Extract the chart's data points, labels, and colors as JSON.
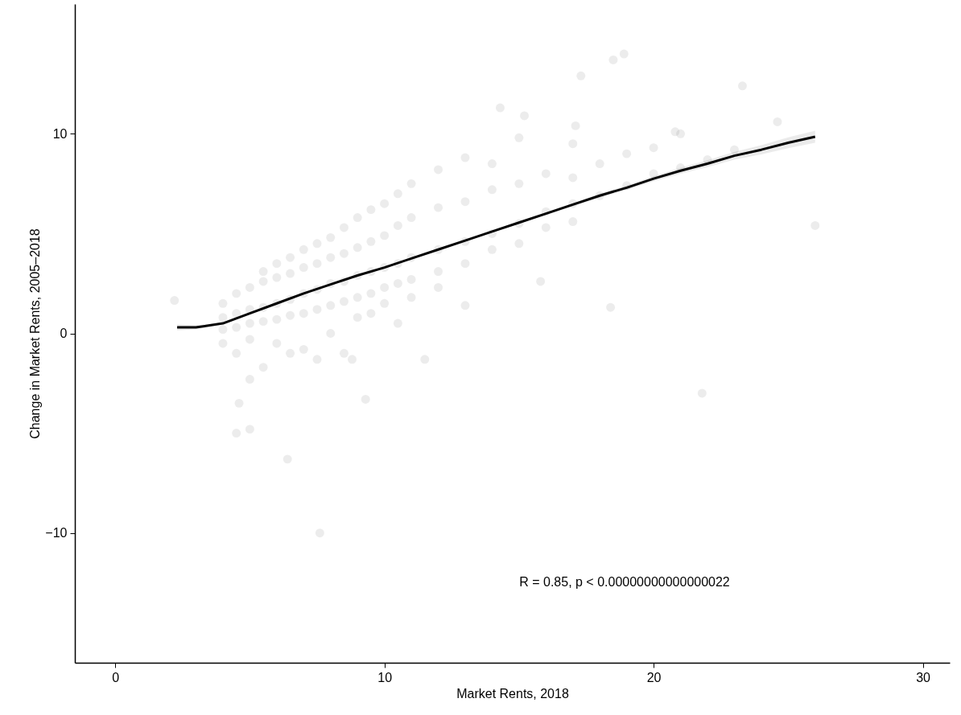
{
  "chart_data": {
    "type": "scatter",
    "xlabel": "Market Rents, 2018",
    "ylabel": "Change in Market Rents, 2005–2018",
    "xlim": [
      -1.5,
      31
    ],
    "ylim": [
      -16.5,
      16.5
    ],
    "xticks": [
      0,
      10,
      20,
      30
    ],
    "yticks": [
      {
        "value": -10,
        "label": "−10"
      },
      0,
      10
    ],
    "grid": false,
    "annotations": [
      "R = 0.85, p < 0.00000000000000022"
    ],
    "series": [
      {
        "color": "#808080",
        "marker": "circle",
        "x": [
          4,
          4,
          4,
          4,
          4.5,
          4.5,
          4.5,
          4.5,
          5,
          5,
          5,
          5,
          5,
          5.5,
          5.5,
          5.5,
          5.5,
          5.5,
          6,
          6,
          6,
          6,
          6,
          6.5,
          6.5,
          6.5,
          6.5,
          6.5,
          7,
          7,
          7,
          7,
          7,
          7.5,
          7.5,
          7.5,
          7.5,
          7.5,
          8,
          8,
          8,
          8,
          8,
          8.5,
          8.5,
          8.5,
          8.5,
          8.5,
          9,
          9,
          9,
          9,
          9,
          9.5,
          9.5,
          9.5,
          9.5,
          9.5,
          10,
          10,
          10,
          10,
          10,
          10.5,
          10.5,
          10.5,
          10.5,
          10.5,
          11,
          11,
          11,
          11,
          11,
          12,
          12,
          12,
          12,
          12,
          13,
          13,
          13,
          13,
          13,
          14,
          14,
          14,
          14,
          15,
          15,
          15,
          15,
          16,
          16,
          16,
          17,
          17,
          17,
          17,
          18,
          18,
          19,
          19,
          20,
          20,
          21,
          21,
          22,
          23,
          7.6,
          6.4,
          21.8,
          18.4,
          26,
          18.9,
          18.5,
          17.3,
          23.3,
          15.2,
          2.2,
          4.5,
          5,
          4.6,
          11.5,
          8.8,
          9.3,
          15.8,
          20.8,
          24.6,
          17.1,
          14.3
        ],
        "values": [
          0.8,
          1.5,
          0.2,
          -0.5,
          1.0,
          2.0,
          0.3,
          -1.0,
          1.2,
          2.3,
          0.5,
          -0.3,
          -2.3,
          1.3,
          2.6,
          0.6,
          3.1,
          -1.7,
          1.5,
          2.8,
          0.7,
          3.5,
          -0.5,
          1.7,
          3.0,
          0.9,
          3.8,
          -1.0,
          2.0,
          3.3,
          1.0,
          4.2,
          -0.8,
          2.2,
          3.5,
          1.2,
          4.5,
          -1.3,
          2.5,
          3.8,
          1.4,
          4.8,
          0.0,
          2.6,
          4.0,
          1.6,
          5.3,
          -1.0,
          2.9,
          4.3,
          1.8,
          5.8,
          0.8,
          3.1,
          4.6,
          2.0,
          6.2,
          1.0,
          3.3,
          4.9,
          2.3,
          6.5,
          1.5,
          3.5,
          5.4,
          2.5,
          7.0,
          0.5,
          3.8,
          5.8,
          2.7,
          7.5,
          1.8,
          4.2,
          6.3,
          3.1,
          8.2,
          2.3,
          4.6,
          6.6,
          3.5,
          8.8,
          1.4,
          5.0,
          7.2,
          4.2,
          8.5,
          5.5,
          7.5,
          4.5,
          9.8,
          6.1,
          8.0,
          5.3,
          6.5,
          7.8,
          5.6,
          9.5,
          6.9,
          8.5,
          7.4,
          9.0,
          8.0,
          9.3,
          8.3,
          10.0,
          8.7,
          9.2,
          -10,
          -6.3,
          -3,
          1.3,
          5.4,
          14.0,
          13.7,
          12.9,
          12.4,
          10.9,
          1.65,
          -5,
          -4.8,
          -3.5,
          -1.3,
          -1.3,
          -3.3,
          2.6,
          10.1,
          10.6,
          10.4,
          11.3
        ]
      },
      {
        "type": "line",
        "color": "#000000",
        "line_style": "solid",
        "x": [
          2.3,
          3,
          4,
          5,
          6,
          7,
          8,
          9,
          10,
          11,
          12,
          13,
          14,
          15,
          16,
          17,
          18,
          19,
          20,
          21,
          22,
          23,
          24,
          25,
          26
        ],
        "values": [
          0.3,
          0.3,
          0.5,
          1.0,
          1.5,
          2.0,
          2.45,
          2.9,
          3.3,
          3.75,
          4.2,
          4.65,
          5.1,
          5.55,
          6.0,
          6.45,
          6.9,
          7.3,
          7.75,
          8.15,
          8.5,
          8.9,
          9.2,
          9.55,
          9.85
        ],
        "lower": [
          0.15,
          0.2,
          0.45,
          0.97,
          1.47,
          1.97,
          2.42,
          2.87,
          3.27,
          3.72,
          4.17,
          4.61,
          5.05,
          5.49,
          5.93,
          6.37,
          6.8,
          7.19,
          7.62,
          8.0,
          8.33,
          8.7,
          8.97,
          9.28,
          9.55
        ],
        "upper": [
          0.45,
          0.4,
          0.55,
          1.03,
          1.53,
          2.03,
          2.48,
          2.93,
          3.33,
          3.78,
          4.23,
          4.69,
          5.15,
          5.61,
          6.07,
          6.53,
          7.0,
          7.41,
          7.88,
          8.3,
          8.67,
          9.1,
          9.43,
          9.82,
          10.15
        ]
      }
    ]
  }
}
